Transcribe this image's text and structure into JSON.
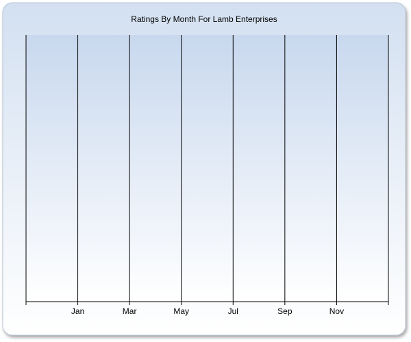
{
  "chart_data": {
    "type": "line",
    "title": "Ratings By Month For Lamb Enterprises",
    "categories": [
      null,
      "Jan",
      "Mar",
      "May",
      "Jul",
      "Sep",
      "Nov",
      null
    ],
    "grid": true
  }
}
